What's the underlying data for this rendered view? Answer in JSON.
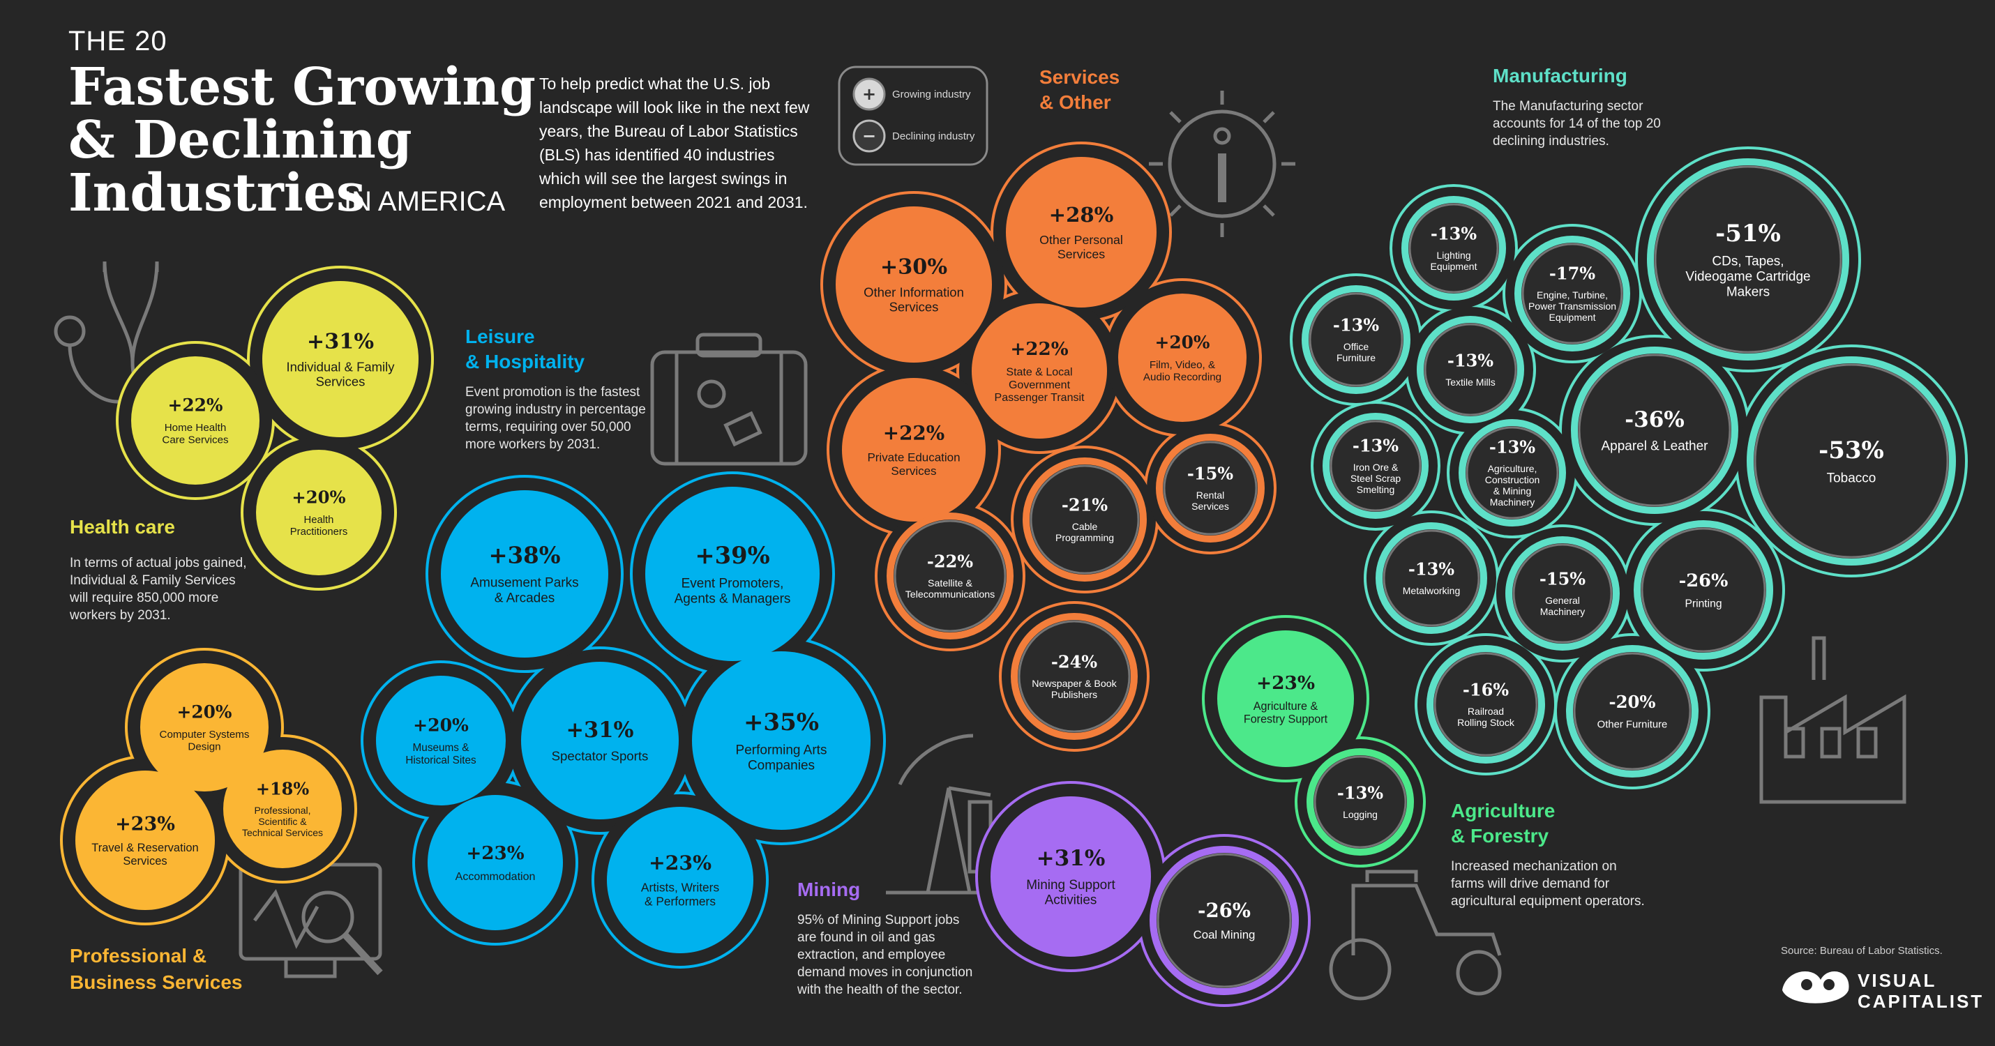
{
  "title": {
    "line1": "THE 20",
    "line2": "Fastest Growing",
    "line3": "& Declining",
    "line4": "Industries",
    "line4_suffix": "IN AMERICA"
  },
  "intro": [
    "To help predict what the U.S. job",
    "landscape will look like in the next few",
    "years, the Bureau of Labor Statistics",
    "(BLS) has identified 40 industries",
    "which will see the largest swings in",
    "employment between 2021 and 2031."
  ],
  "legend": {
    "growing_label": "Growing industry",
    "declining_label": "Declining industry",
    "growing_symbol": "+",
    "declining_symbol": "−"
  },
  "source": "Source: Bureau of Labor Statistics.",
  "brand": {
    "line1": "VISUAL",
    "line2": "CAPITALIST"
  },
  "icon_names": [
    "stethoscope-icon",
    "briefcase-icon",
    "gear-info-icon",
    "oil-pump-icon",
    "tractor-icon",
    "factory-icon",
    "monitor-magnifier-icon",
    "visual-capitalist-logo-icon"
  ],
  "colors": {
    "background": "#262626",
    "health": "#e6e24a",
    "leisure": "#00b2ee",
    "services": "#f37e3b",
    "mining": "#a66cf2",
    "agriculture": "#4ce88a",
    "manufacturing": "#5ee0c8",
    "professional": "#fbb634"
  },
  "chart_data": {
    "type": "bubble",
    "sections": [
      {
        "key": "health",
        "title": [
          "Health care"
        ],
        "desc": [
          "In terms of actual jobs gained,",
          "Individual & Family Services",
          "will require 850,000 more",
          "workers by 2031."
        ],
        "color": "#e6e24a",
        "items": [
          {
            "value": "+31%",
            "label": [
              "Individual & Family",
              "Services"
            ],
            "growth": 31
          },
          {
            "value": "+22%",
            "label": [
              "Home Health",
              "Care Services"
            ],
            "growth": 22
          },
          {
            "value": "+20%",
            "label": [
              "Health",
              "Practitioners"
            ],
            "growth": 20
          }
        ]
      },
      {
        "key": "professional",
        "title": [
          "Professional &",
          "Business Services"
        ],
        "desc": [],
        "color": "#fbb634",
        "items": [
          {
            "value": "+20%",
            "label": [
              "Computer Systems",
              "Design"
            ],
            "growth": 20
          },
          {
            "value": "+18%",
            "label": [
              "Professional,",
              "Scientific &",
              "Technical Services"
            ],
            "growth": 18
          },
          {
            "value": "+23%",
            "label": [
              "Travel & Reservation",
              "Services"
            ],
            "growth": 23
          }
        ]
      },
      {
        "key": "leisure",
        "title": [
          "Leisure",
          "& Hospitality"
        ],
        "desc": [
          "Event promotion is the fastest",
          "growing industry in percentage",
          "terms, requiring over 50,000",
          "more workers by 2031."
        ],
        "color": "#00b2ee",
        "items": [
          {
            "value": "+38%",
            "label": [
              "Amusement Parks",
              "& Arcades"
            ],
            "growth": 38
          },
          {
            "value": "+39%",
            "label": [
              "Event Promoters,",
              "Agents & Managers"
            ],
            "growth": 39
          },
          {
            "value": "+20%",
            "label": [
              "Museums &",
              "Historical Sites"
            ],
            "growth": 20
          },
          {
            "value": "+31%",
            "label": [
              "Spectator Sports"
            ],
            "growth": 31
          },
          {
            "value": "+35%",
            "label": [
              "Performing Arts",
              "Companies"
            ],
            "growth": 35
          },
          {
            "value": "+23%",
            "label": [
              "Accommodation"
            ],
            "growth": 23
          },
          {
            "value": "+23%",
            "label": [
              "Artists, Writers",
              "& Performers"
            ],
            "growth": 23
          }
        ]
      },
      {
        "key": "services",
        "title": [
          "Services",
          "& Other"
        ],
        "desc": [],
        "color": "#f37e3b",
        "items": [
          {
            "value": "+28%",
            "label": [
              "Other Personal",
              "Services"
            ],
            "growth": 28
          },
          {
            "value": "+30%",
            "label": [
              "Other Information",
              "Services"
            ],
            "growth": 30
          },
          {
            "value": "+22%",
            "label": [
              "State & Local",
              "Government",
              "Passenger Transit"
            ],
            "growth": 22
          },
          {
            "value": "+20%",
            "label": [
              "Film, Video, &",
              "Audio Recording"
            ],
            "growth": 20
          },
          {
            "value": "+22%",
            "label": [
              "Private Education",
              "Services"
            ],
            "growth": 22
          },
          {
            "value": "-21%",
            "label": [
              "Cable",
              "Programming"
            ],
            "growth": -21
          },
          {
            "value": "-15%",
            "label": [
              "Rental",
              "Services"
            ],
            "growth": -15
          },
          {
            "value": "-22%",
            "label": [
              "Satellite &",
              "Telecommunications"
            ],
            "growth": -22
          },
          {
            "value": "-24%",
            "label": [
              "Newspaper & Book",
              "Publishers"
            ],
            "growth": -24
          }
        ]
      },
      {
        "key": "mining",
        "title": [
          "Mining"
        ],
        "desc": [
          "95% of Mining Support jobs",
          "are found in oil and gas",
          "extraction, and employee",
          "demand moves in conjunction",
          "with the health of the sector."
        ],
        "color": "#a66cf2",
        "items": [
          {
            "value": "+31%",
            "label": [
              "Mining Support",
              "Activities"
            ],
            "growth": 31
          },
          {
            "value": "-26%",
            "label": [
              "Coal Mining"
            ],
            "growth": -26
          }
        ]
      },
      {
        "key": "agriculture",
        "title": [
          "Agriculture",
          "& Forestry"
        ],
        "desc": [
          "Increased mechanization on",
          "farms will drive demand for",
          "agricultural equipment operators."
        ],
        "color": "#4ce88a",
        "items": [
          {
            "value": "+23%",
            "label": [
              "Agriculture &",
              "Forestry Support"
            ],
            "growth": 23
          },
          {
            "value": "-13%",
            "label": [
              "Logging"
            ],
            "growth": -13
          }
        ]
      },
      {
        "key": "manufacturing",
        "title": [
          "Manufacturing"
        ],
        "desc": [
          "The Manufacturing sector",
          "accounts for 14 of the top 20",
          "declining industries."
        ],
        "color": "#5ee0c8",
        "items": [
          {
            "value": "-51%",
            "label": [
              "CDs, Tapes,",
              "Videogame Cartridge",
              "Makers"
            ],
            "growth": -51
          },
          {
            "value": "-13%",
            "label": [
              "Lighting",
              "Equipment"
            ],
            "growth": -13
          },
          {
            "value": "-17%",
            "label": [
              "Engine, Turbine,",
              "Power Transmission",
              "Equipment"
            ],
            "growth": -17
          },
          {
            "value": "-13%",
            "label": [
              "Office",
              "Furniture"
            ],
            "growth": -13
          },
          {
            "value": "-13%",
            "label": [
              "Textile Mills"
            ],
            "growth": -13
          },
          {
            "value": "-36%",
            "label": [
              "Apparel & Leather"
            ],
            "growth": -36
          },
          {
            "value": "-53%",
            "label": [
              "Tobacco"
            ],
            "growth": -53
          },
          {
            "value": "-13%",
            "label": [
              "Iron Ore &",
              "Steel Scrap",
              "Smelting"
            ],
            "growth": -13
          },
          {
            "value": "-13%",
            "label": [
              "Agriculture,",
              "Construction",
              "& Mining",
              "Machinery"
            ],
            "growth": -13
          },
          {
            "value": "-13%",
            "label": [
              "Metalworking"
            ],
            "growth": -13
          },
          {
            "value": "-15%",
            "label": [
              "General",
              "Machinery"
            ],
            "growth": -15
          },
          {
            "value": "-26%",
            "label": [
              "Printing"
            ],
            "growth": -26
          },
          {
            "value": "-16%",
            "label": [
              "Railroad",
              "Rolling Stock"
            ],
            "growth": -16
          },
          {
            "value": "-20%",
            "label": [
              "Other Furniture"
            ],
            "growth": -20
          }
        ]
      }
    ]
  }
}
